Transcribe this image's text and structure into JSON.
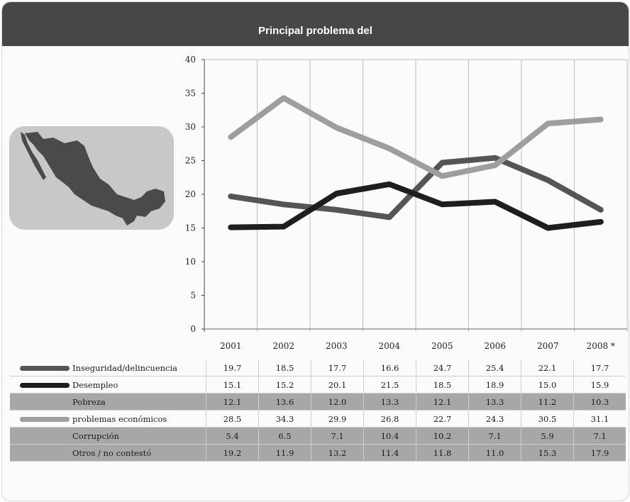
{
  "header": {
    "title": "Principal problema del"
  },
  "colors": {
    "inseguridad": "#555555",
    "desempleo": "#1e1e1e",
    "problemas": "#9e9e9e",
    "header": "#474747"
  },
  "icons": {
    "map": "mexico-map-icon"
  },
  "chart_data": {
    "type": "line",
    "title": "Principal problema del",
    "categories": [
      "2001",
      "2002",
      "2003",
      "2004",
      "2005",
      "2006",
      "2007",
      "2008 *"
    ],
    "y_ticks": [
      "0",
      "5",
      "10",
      "15",
      "20",
      "25",
      "30",
      "35",
      "40"
    ],
    "ylim": [
      0,
      40
    ],
    "grid": "vertical",
    "series": [
      {
        "name": "Inseguridad/delincuencia",
        "values": [
          19.7,
          18.5,
          17.7,
          16.6,
          24.7,
          25.4,
          22.1,
          17.7
        ],
        "color": "#555555"
      },
      {
        "name": "Desempleo",
        "values": [
          15.1,
          15.2,
          20.1,
          21.5,
          18.5,
          18.9,
          15.0,
          15.9
        ],
        "color": "#1e1e1e"
      },
      {
        "name": "problemas económicos",
        "values": [
          28.5,
          34.3,
          29.9,
          26.8,
          22.7,
          24.3,
          30.5,
          31.1
        ],
        "color": "#9e9e9e"
      }
    ]
  },
  "table": {
    "rows": [
      {
        "label": "Inseguridad/delincuencia",
        "swatch": "inseg",
        "values": [
          "19.7",
          "18.5",
          "17.7",
          "16.6",
          "24.7",
          "25.4",
          "22.1",
          "17.7"
        ]
      },
      {
        "label": "Desempleo",
        "swatch": "desemp",
        "values": [
          "15.1",
          "15.2",
          "20.1",
          "21.5",
          "18.5",
          "18.9",
          "15.0",
          "15.9"
        ]
      },
      {
        "label": "Pobreza",
        "swatch": "",
        "values": [
          "12.1",
          "13.6",
          "12.0",
          "13.3",
          "12.1",
          "13.3",
          "11.2",
          "10.3"
        ]
      },
      {
        "label": "problemas económicos",
        "swatch": "probl",
        "values": [
          "28.5",
          "34.3",
          "29.9",
          "26.8",
          "22.7",
          "24.3",
          "30.5",
          "31.1"
        ]
      },
      {
        "label": "Corrupción",
        "swatch": "",
        "values": [
          "5.4",
          "6.5",
          "7.1",
          "10.4",
          "10.2",
          "7.1",
          "5.9",
          "7.1"
        ]
      },
      {
        "label": "Otros / no contestó",
        "swatch": "",
        "values": [
          "19.2",
          "11.9",
          "13.2",
          "11.4",
          "11.8",
          "11.0",
          "15.3",
          "17.9"
        ]
      }
    ]
  }
}
